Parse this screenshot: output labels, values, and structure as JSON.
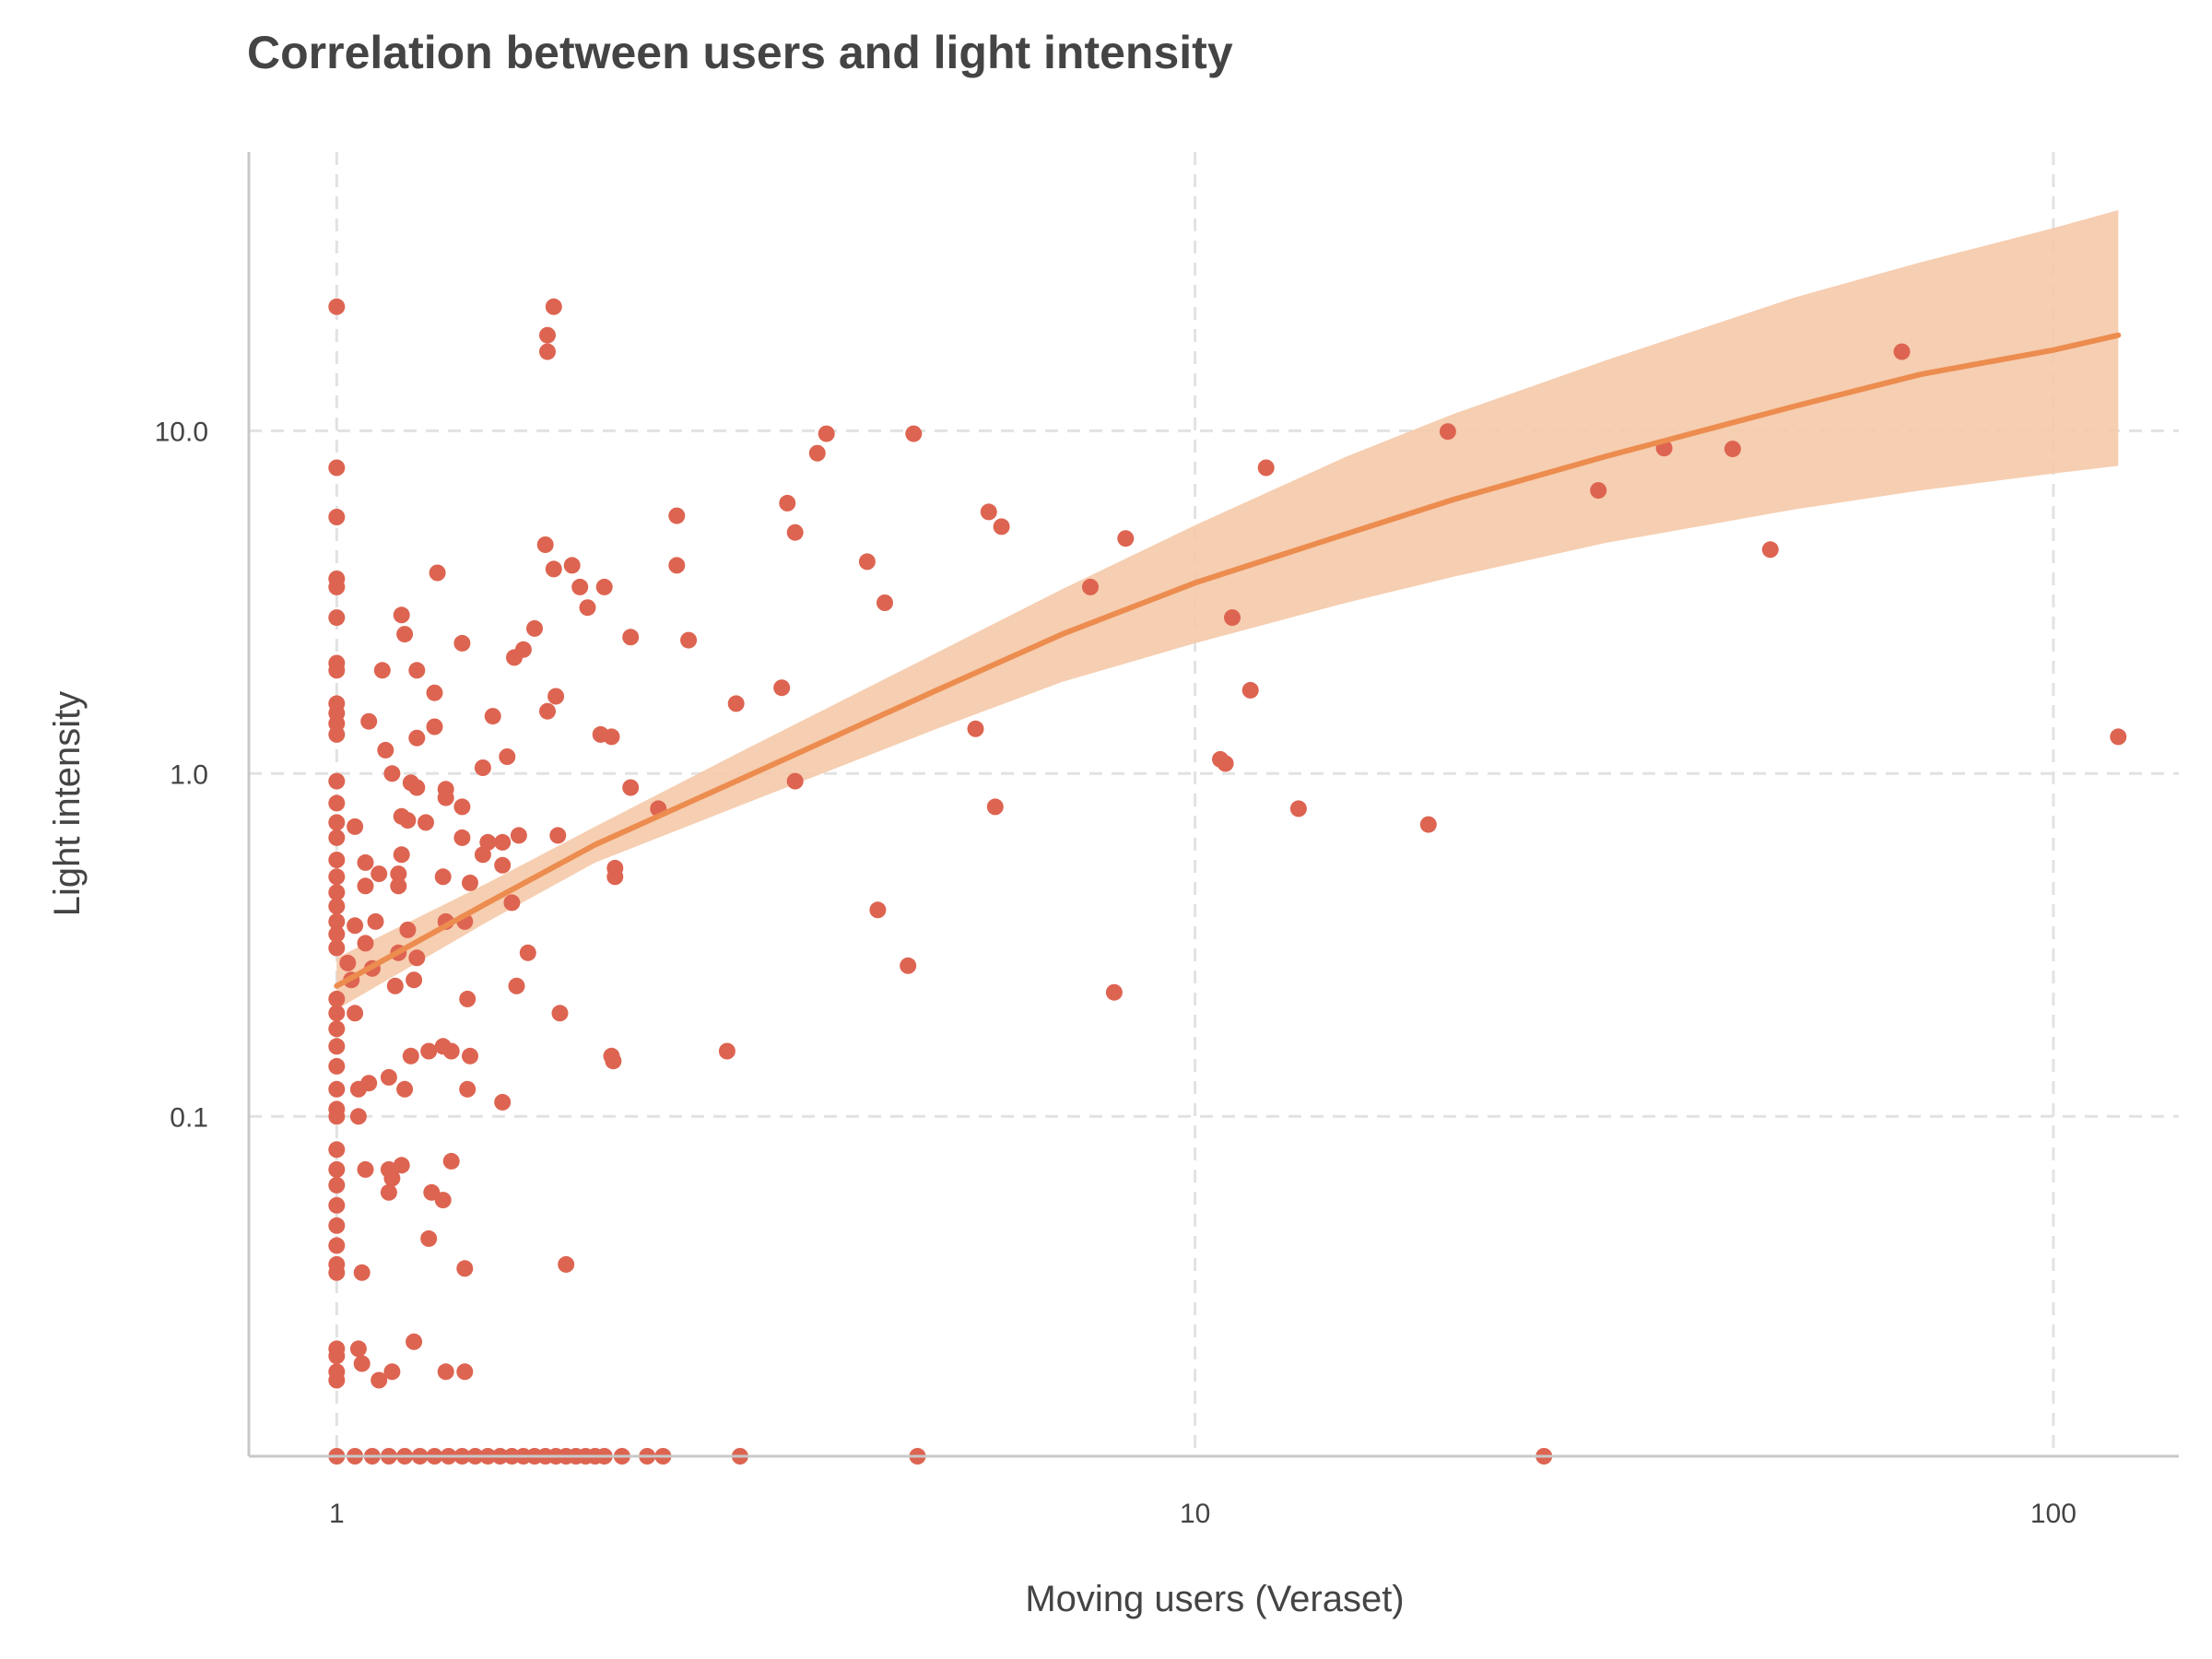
{
  "chart_data": {
    "type": "scatter",
    "title": "Correlation between users and light intensity",
    "xlabel": "Moving users (Veraset)",
    "ylabel": "Light intensity",
    "x_scale": "log",
    "y_scale": "log",
    "xlim": [
      0.79,
      140
    ],
    "ylim": [
      0.0102,
      65
    ],
    "x_ticks": [
      {
        "value": 1,
        "label": "1"
      },
      {
        "value": 10,
        "label": "10"
      },
      {
        "value": 100,
        "label": "100"
      }
    ],
    "y_ticks": [
      {
        "value": 0.1,
        "label": "0.1"
      },
      {
        "value": 1,
        "label": "1.0"
      },
      {
        "value": 10,
        "label": "10.0"
      }
    ],
    "grid": true,
    "legend": "none",
    "colors": {
      "points": "#dd6451",
      "fit_line": "#ec8c4f",
      "confidence_band": "#f5c9a8",
      "grid": "#e2e2e2",
      "axis": "#c8c8c8",
      "text": "#444444"
    },
    "series": [
      {
        "type": "scatter",
        "points": [
          [
            1,
            23
          ],
          [
            1,
            7.8
          ],
          [
            1,
            5.6
          ],
          [
            1,
            3.7
          ],
          [
            1,
            3.5
          ],
          [
            1,
            2.85
          ],
          [
            1,
            2.1
          ],
          [
            1,
            2.0
          ],
          [
            1,
            1.6
          ],
          [
            1,
            1.5
          ],
          [
            1,
            1.4
          ],
          [
            1,
            1.3
          ],
          [
            1,
            0.95
          ],
          [
            1,
            0.82
          ],
          [
            1,
            0.72
          ],
          [
            1,
            0.65
          ],
          [
            1,
            0.56
          ],
          [
            1,
            0.5
          ],
          [
            1,
            0.45
          ],
          [
            1,
            0.41
          ],
          [
            1,
            0.37
          ],
          [
            1,
            0.34
          ],
          [
            1,
            0.31
          ],
          [
            1,
            0.22
          ],
          [
            1,
            0.2
          ],
          [
            1,
            0.18
          ],
          [
            1,
            0.16
          ],
          [
            1,
            0.14
          ],
          [
            1,
            0.12
          ],
          [
            1,
            0.105
          ],
          [
            1,
            0.1
          ],
          [
            1,
            0.08
          ],
          [
            1,
            0.07
          ],
          [
            1,
            0.063
          ],
          [
            1,
            0.055
          ],
          [
            1,
            0.048
          ],
          [
            1,
            0.042
          ],
          [
            1,
            0.037
          ],
          [
            1,
            0.035
          ],
          [
            1,
            0.021
          ],
          [
            1,
            0.02
          ],
          [
            1,
            0.018
          ],
          [
            1,
            0.017
          ],
          [
            1.03,
            0.28
          ],
          [
            1.04,
            0.25
          ],
          [
            1.05,
            0.7
          ],
          [
            1.05,
            0.36
          ],
          [
            1.05,
            0.2
          ],
          [
            1.06,
            0.12
          ],
          [
            1.06,
            0.1
          ],
          [
            1.06,
            0.021
          ],
          [
            1.07,
            0.019
          ],
          [
            1.07,
            0.035
          ],
          [
            1.08,
            0.55
          ],
          [
            1.08,
            0.47
          ],
          [
            1.08,
            0.32
          ],
          [
            1.08,
            0.07
          ],
          [
            1.09,
            1.42
          ],
          [
            1.09,
            0.125
          ],
          [
            1.1,
            0.27
          ],
          [
            1.11,
            0.37
          ],
          [
            1.12,
            0.51
          ],
          [
            1.12,
            0.017
          ],
          [
            1.13,
            2.0
          ],
          [
            1.14,
            1.17
          ],
          [
            1.15,
            0.13
          ],
          [
            1.15,
            0.07
          ],
          [
            1.15,
            0.06
          ],
          [
            1.16,
            0.066
          ],
          [
            1.16,
            1.0
          ],
          [
            1.16,
            0.018
          ],
          [
            1.17,
            0.24
          ],
          [
            1.18,
            0.3
          ],
          [
            1.18,
            0.47
          ],
          [
            1.18,
            0.51
          ],
          [
            1.19,
            2.9
          ],
          [
            1.19,
            0.58
          ],
          [
            1.19,
            0.75
          ],
          [
            1.19,
            0.072
          ],
          [
            1.2,
            2.55
          ],
          [
            1.2,
            0.12
          ],
          [
            1.21,
            0.35
          ],
          [
            1.21,
            0.73
          ],
          [
            1.22,
            0.94
          ],
          [
            1.22,
            0.15
          ],
          [
            1.23,
            0.25
          ],
          [
            1.23,
            0.022
          ],
          [
            1.24,
            2.0
          ],
          [
            1.24,
            1.27
          ],
          [
            1.24,
            0.91
          ],
          [
            1.24,
            0.29
          ],
          [
            1.27,
            0.72
          ],
          [
            1.28,
            0.155
          ],
          [
            1.28,
            0.044
          ],
          [
            1.29,
            0.06
          ],
          [
            1.3,
            1.72
          ],
          [
            1.3,
            1.37
          ],
          [
            1.31,
            3.85
          ],
          [
            1.33,
            0.5
          ],
          [
            1.33,
            0.16
          ],
          [
            1.33,
            0.057
          ],
          [
            1.34,
            0.9
          ],
          [
            1.34,
            0.85
          ],
          [
            1.34,
            0.37
          ],
          [
            1.34,
            0.018
          ],
          [
            1.36,
            0.155
          ],
          [
            1.36,
            0.074
          ],
          [
            1.4,
            2.4
          ],
          [
            1.4,
            0.8
          ],
          [
            1.4,
            0.65
          ],
          [
            1.41,
            0.37
          ],
          [
            1.41,
            0.036
          ],
          [
            1.41,
            0.018
          ],
          [
            1.42,
            0.22
          ],
          [
            1.42,
            0.12
          ],
          [
            1.43,
            0.48
          ],
          [
            1.43,
            0.15
          ],
          [
            1.48,
            1.04
          ],
          [
            1.48,
            0.58
          ],
          [
            1.5,
            0.63
          ],
          [
            1.52,
            1.47
          ],
          [
            1.56,
            0.54
          ],
          [
            1.56,
            0.63
          ],
          [
            1.56,
            0.11
          ],
          [
            1.58,
            1.12
          ],
          [
            1.6,
            0.42
          ],
          [
            1.61,
            2.18
          ],
          [
            1.62,
            0.24
          ],
          [
            1.63,
            0.66
          ],
          [
            1.65,
            2.3
          ],
          [
            1.67,
            0.3
          ],
          [
            1.7,
            2.65
          ],
          [
            1.75,
            4.65
          ],
          [
            1.76,
            19
          ],
          [
            1.76,
            17
          ],
          [
            1.76,
            1.52
          ],
          [
            1.79,
            23
          ],
          [
            1.79,
            3.95
          ],
          [
            1.8,
            1.68
          ],
          [
            1.81,
            0.66
          ],
          [
            1.82,
            0.2
          ],
          [
            1.85,
            0.037
          ],
          [
            1.88,
            4.05
          ],
          [
            1.92,
            3.5
          ],
          [
            1.96,
            3.05
          ],
          [
            2.03,
            1.3
          ],
          [
            2.05,
            3.5
          ],
          [
            2.09,
            1.28
          ],
          [
            2.09,
            0.15
          ],
          [
            2.1,
            0.145
          ],
          [
            2.11,
            0.53
          ],
          [
            2.11,
            0.5
          ],
          [
            2.2,
            0.91
          ],
          [
            2.2,
            2.5
          ],
          [
            2.37,
            0.79
          ],
          [
            2.49,
            5.65
          ],
          [
            2.49,
            4.05
          ],
          [
            2.57,
            2.45
          ],
          [
            2.85,
            0.155
          ],
          [
            2.92,
            1.6
          ],
          [
            3.3,
            1.78
          ],
          [
            3.35,
            6.15
          ],
          [
            3.42,
            5.05
          ],
          [
            3.42,
            0.95
          ],
          [
            3.63,
            8.6
          ],
          [
            3.72,
            9.8
          ],
          [
            4.15,
            4.15
          ],
          [
            4.27,
            0.4
          ],
          [
            4.35,
            3.15
          ],
          [
            4.63,
            0.275
          ],
          [
            4.7,
            9.8
          ],
          [
            5.55,
            1.35
          ],
          [
            5.75,
            5.8
          ],
          [
            5.85,
            0.8
          ],
          [
            5.95,
            5.25
          ],
          [
            7.55,
            3.5
          ],
          [
            8.05,
            0.23
          ],
          [
            8.3,
            4.85
          ],
          [
            10.7,
            1.1
          ],
          [
            10.85,
            1.07
          ],
          [
            11.05,
            2.85
          ],
          [
            11.6,
            1.75
          ],
          [
            12.1,
            7.8
          ],
          [
            13.2,
            0.79
          ],
          [
            18.7,
            0.71
          ],
          [
            19.7,
            9.95
          ],
          [
            29.5,
            6.7
          ],
          [
            35.2,
            8.9
          ],
          [
            42.3,
            8.85
          ],
          [
            46.8,
            4.5
          ],
          [
            66.6,
            17
          ],
          [
            119,
            1.28
          ],
          [
            1,
            0.0102
          ],
          [
            1.05,
            0.0102
          ],
          [
            1.1,
            0.0102
          ],
          [
            1.15,
            0.0102
          ],
          [
            1.2,
            0.0102
          ],
          [
            1.25,
            0.0102
          ],
          [
            1.3,
            0.0102
          ],
          [
            1.35,
            0.0102
          ],
          [
            1.4,
            0.0102
          ],
          [
            1.45,
            0.0102
          ],
          [
            1.5,
            0.0102
          ],
          [
            1.55,
            0.0102
          ],
          [
            1.6,
            0.0102
          ],
          [
            1.65,
            0.0102
          ],
          [
            1.7,
            0.0102
          ],
          [
            1.75,
            0.0102
          ],
          [
            1.8,
            0.0102
          ],
          [
            1.85,
            0.0102
          ],
          [
            1.9,
            0.0102
          ],
          [
            1.95,
            0.0102
          ],
          [
            2.0,
            0.0102
          ],
          [
            2.05,
            0.0102
          ],
          [
            2.15,
            0.0102
          ],
          [
            2.3,
            0.0102
          ],
          [
            2.4,
            0.0102
          ],
          [
            2.95,
            0.0102
          ],
          [
            4.75,
            0.0102
          ],
          [
            25.5,
            0.0102
          ]
        ]
      },
      {
        "type": "line",
        "fit": true,
        "points": [
          [
            1,
            0.24
          ],
          [
            1.5,
            0.42
          ],
          [
            2,
            0.62
          ],
          [
            3,
            0.98
          ],
          [
            5,
            1.75
          ],
          [
            7,
            2.55
          ],
          [
            10,
            3.6
          ],
          [
            15,
            5.0
          ],
          [
            20,
            6.3
          ],
          [
            30,
            8.4
          ],
          [
            50,
            11.8
          ],
          [
            70,
            14.6
          ],
          [
            100,
            17.2
          ],
          [
            119,
            19
          ]
        ]
      },
      {
        "type": "band",
        "fit": true,
        "points": [
          [
            1,
            0.205,
            0.29
          ],
          [
            1.5,
            0.37,
            0.48
          ],
          [
            2,
            0.55,
            0.7
          ],
          [
            3,
            0.82,
            1.18
          ],
          [
            5,
            1.35,
            2.25
          ],
          [
            7,
            1.85,
            3.45
          ],
          [
            10,
            2.4,
            5.3
          ],
          [
            15,
            3.15,
            8.4
          ],
          [
            20,
            3.75,
            11.2
          ],
          [
            30,
            4.7,
            16
          ],
          [
            50,
            5.9,
            24.5
          ],
          [
            70,
            6.7,
            31
          ],
          [
            100,
            7.5,
            39
          ],
          [
            119,
            7.9,
            44
          ]
        ]
      }
    ]
  }
}
